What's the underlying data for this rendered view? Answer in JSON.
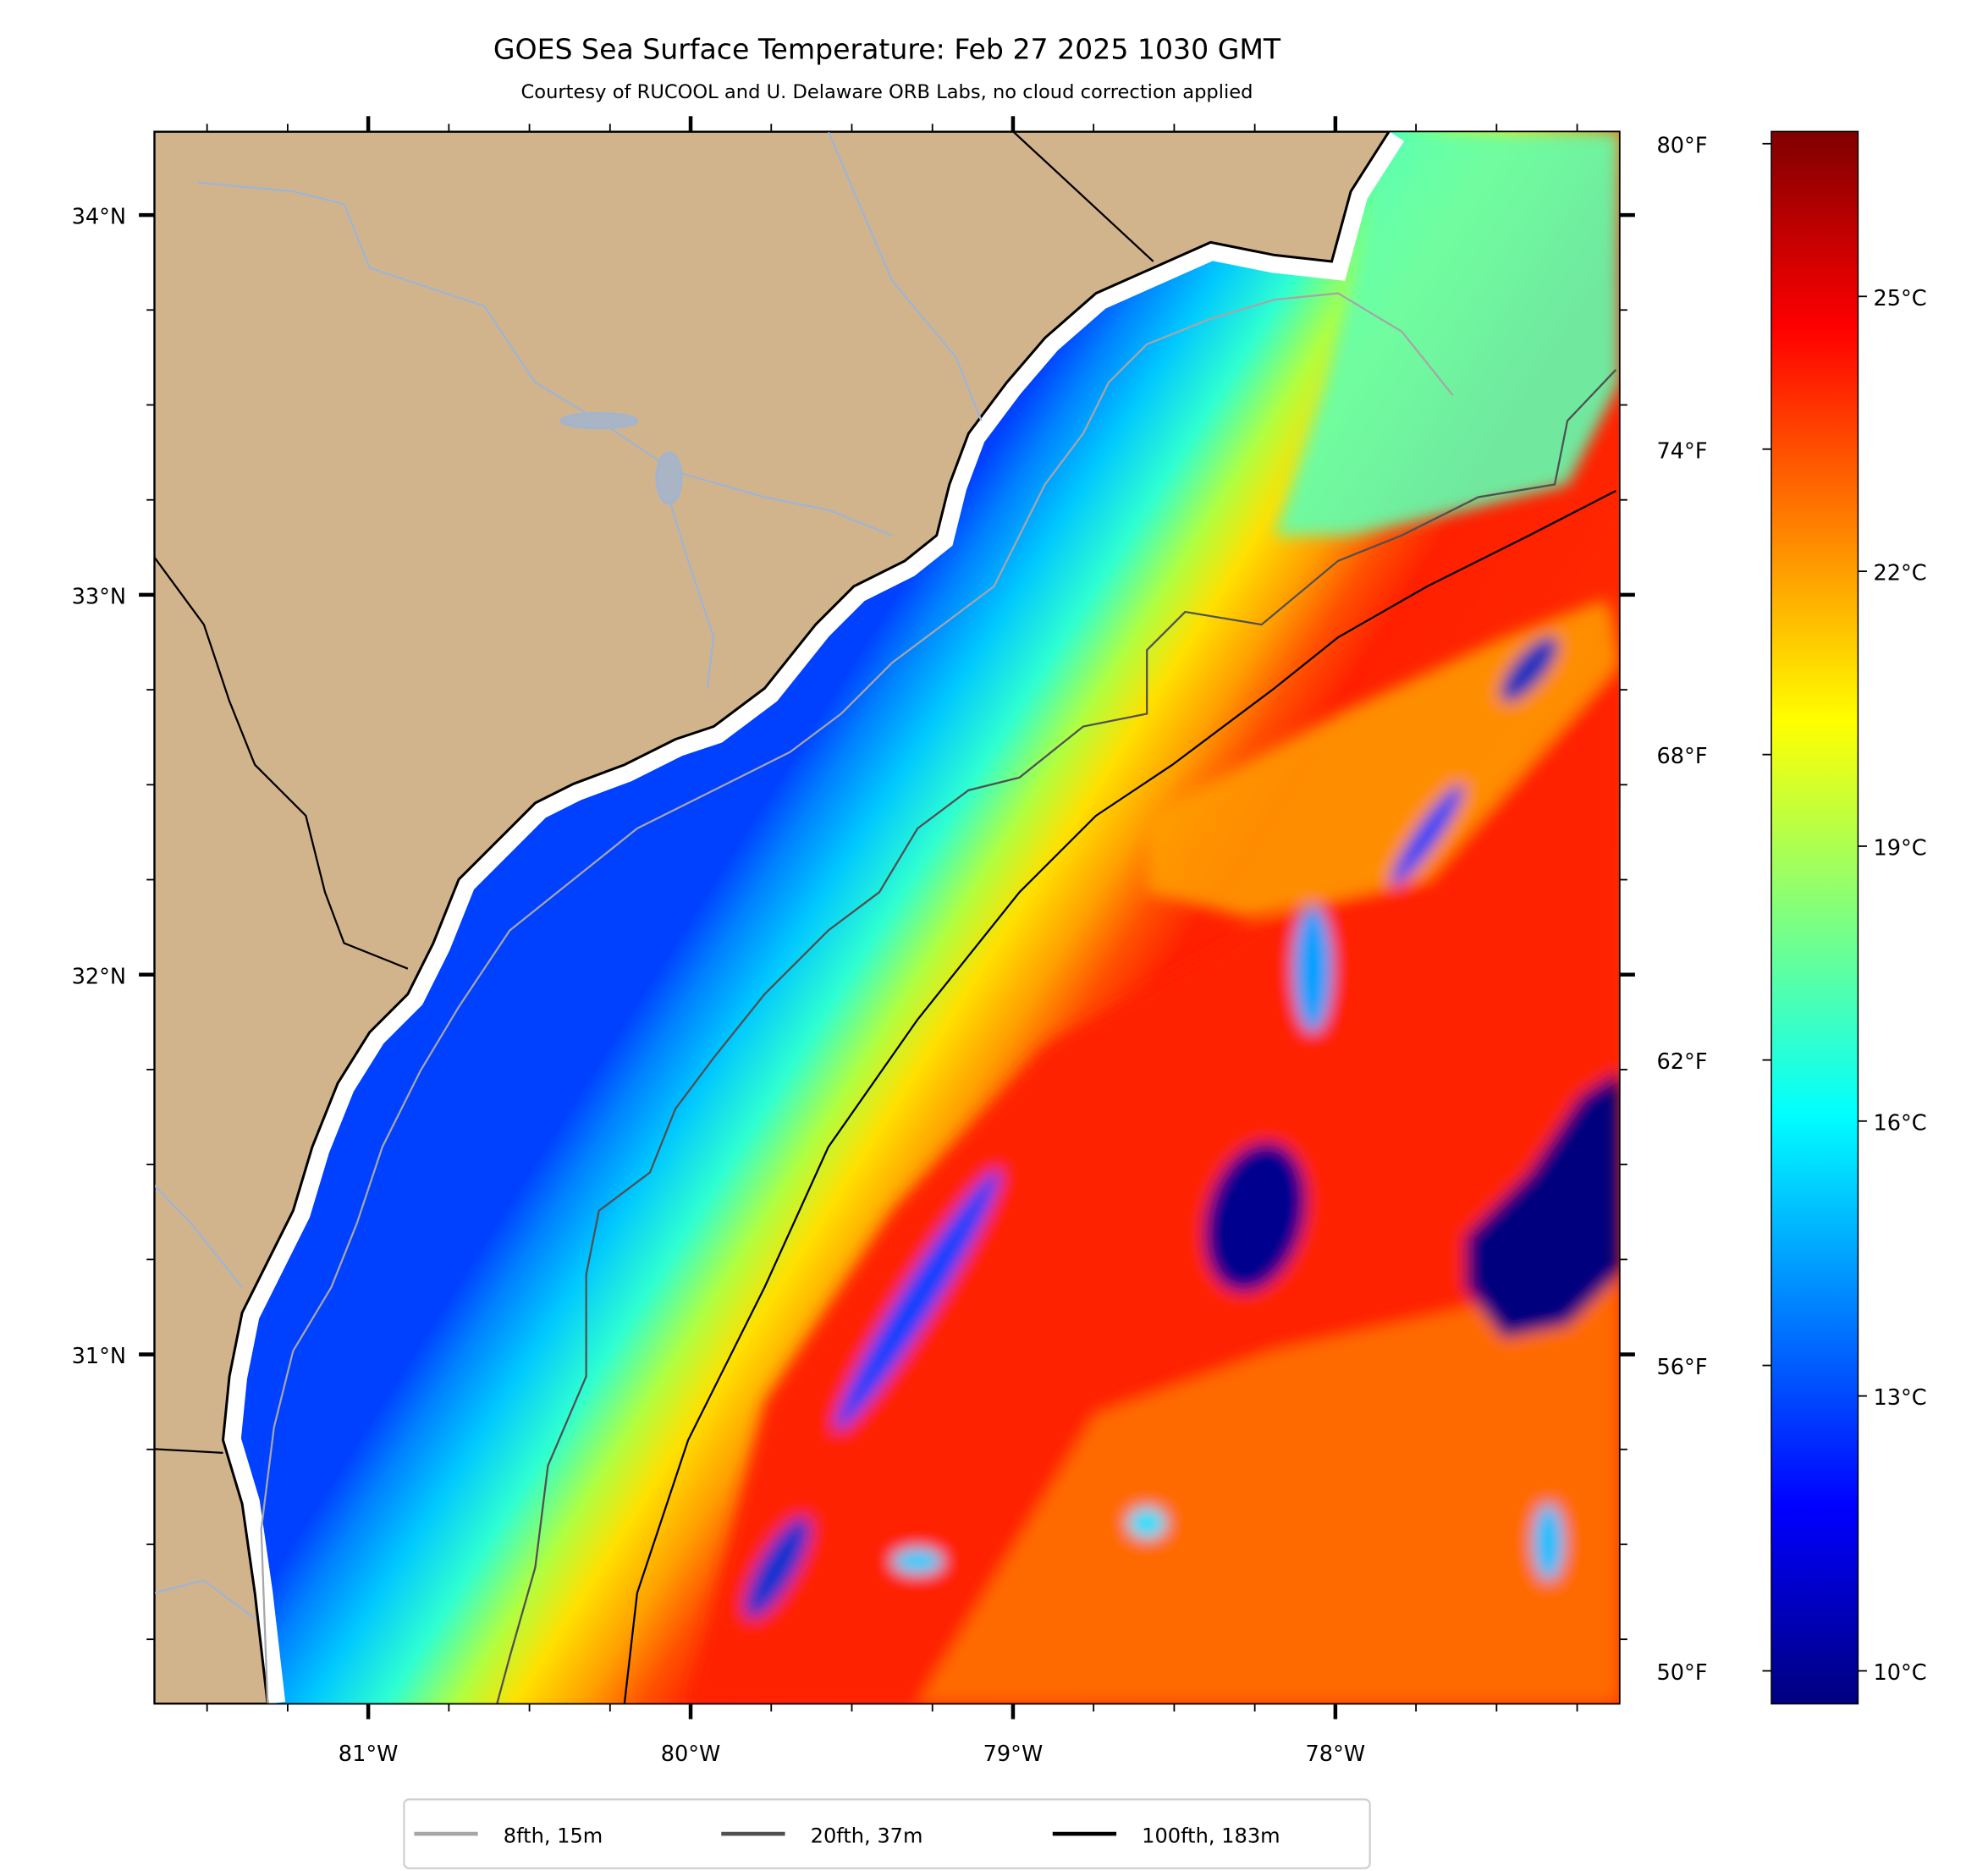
{
  "figure": {
    "title": "GOES Sea Surface Temperature: Feb 27 2025 1030 GMT",
    "subtitle": "Courtesy of RUCOOL and U. Delaware ORB Labs, no cloud correction applied"
  },
  "map": {
    "lon_range": [
      -81.664,
      -77.118
    ],
    "lat_range": [
      30.08,
      34.22
    ],
    "lon_ticks": [
      {
        "value": -81,
        "label": "81°W"
      },
      {
        "value": -80,
        "label": "80°W"
      },
      {
        "value": -79,
        "label": "79°W"
      },
      {
        "value": -78,
        "label": "78°W"
      }
    ],
    "lat_ticks": [
      {
        "value": 34,
        "label": "34°N"
      },
      {
        "value": 33,
        "label": "33°N"
      },
      {
        "value": 32,
        "label": "32°N"
      },
      {
        "value": 31,
        "label": "31°N"
      }
    ],
    "land_color": "#d2b48c",
    "river_color": "#9fb4d4"
  },
  "colorbar": {
    "colormap": "jet",
    "range_c": [
      9.64,
      26.8
    ],
    "celsius_ticks": [
      {
        "value": 25,
        "label": "25°C"
      },
      {
        "value": 22,
        "label": "22°C"
      },
      {
        "value": 19,
        "label": "19°C"
      },
      {
        "value": 16,
        "label": "16°C"
      },
      {
        "value": 13,
        "label": "13°C"
      },
      {
        "value": 10,
        "label": "10°C"
      }
    ],
    "fahrenheit_ticks": [
      {
        "value": 80,
        "label": "80°F"
      },
      {
        "value": 74,
        "label": "74°F"
      },
      {
        "value": 68,
        "label": "68°F"
      },
      {
        "value": 62,
        "label": "62°F"
      },
      {
        "value": 56,
        "label": "56°F"
      },
      {
        "value": 50,
        "label": "50°F"
      }
    ]
  },
  "legend": {
    "placement": "bottom-center",
    "entries": [
      {
        "label": "8fth, 15m",
        "color": "#a6a6a6"
      },
      {
        "label": "20fth, 37m",
        "color": "#505050"
      },
      {
        "label": "100fth, 183m",
        "color": "#000000"
      }
    ]
  }
}
